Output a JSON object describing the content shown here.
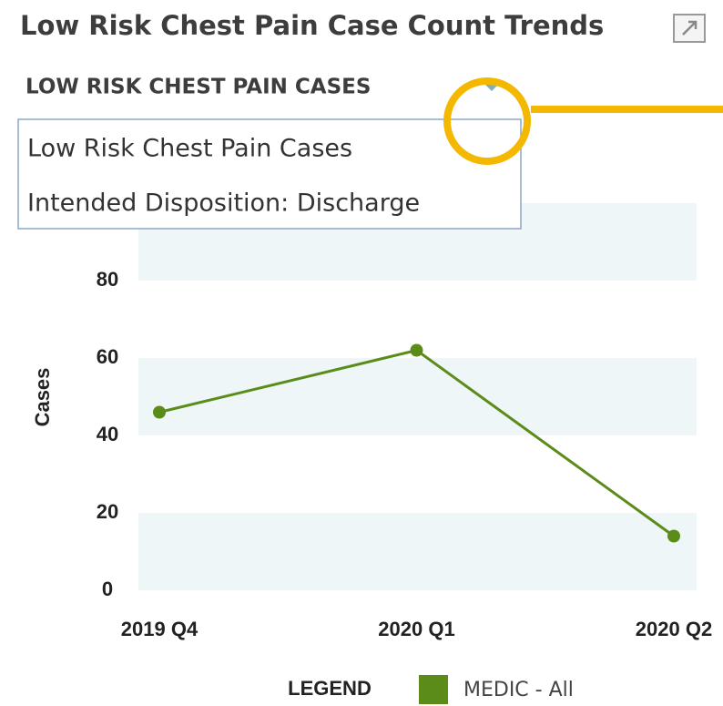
{
  "header": {
    "title": "Low Risk Chest Pain Case Count Trends"
  },
  "selector": {
    "label": "LOW RISK CHEST PAIN CASES",
    "options": [
      "Low Risk Chest Pain Cases",
      "Intended Disposition: Discharge"
    ]
  },
  "chart_data": {
    "type": "line",
    "y_label": "Cases",
    "categories": [
      "2019 Q4",
      "2020 Q1",
      "2020 Q2"
    ],
    "series": [
      {
        "name": "MEDIC - All",
        "color": "#5b8c1a",
        "values": [
          46,
          62,
          14
        ]
      }
    ],
    "ylim": [
      0,
      100
    ],
    "yticks": [
      0,
      20,
      40,
      60,
      80
    ],
    "legend_title": "LEGEND",
    "band_color": "#eef6f8"
  }
}
